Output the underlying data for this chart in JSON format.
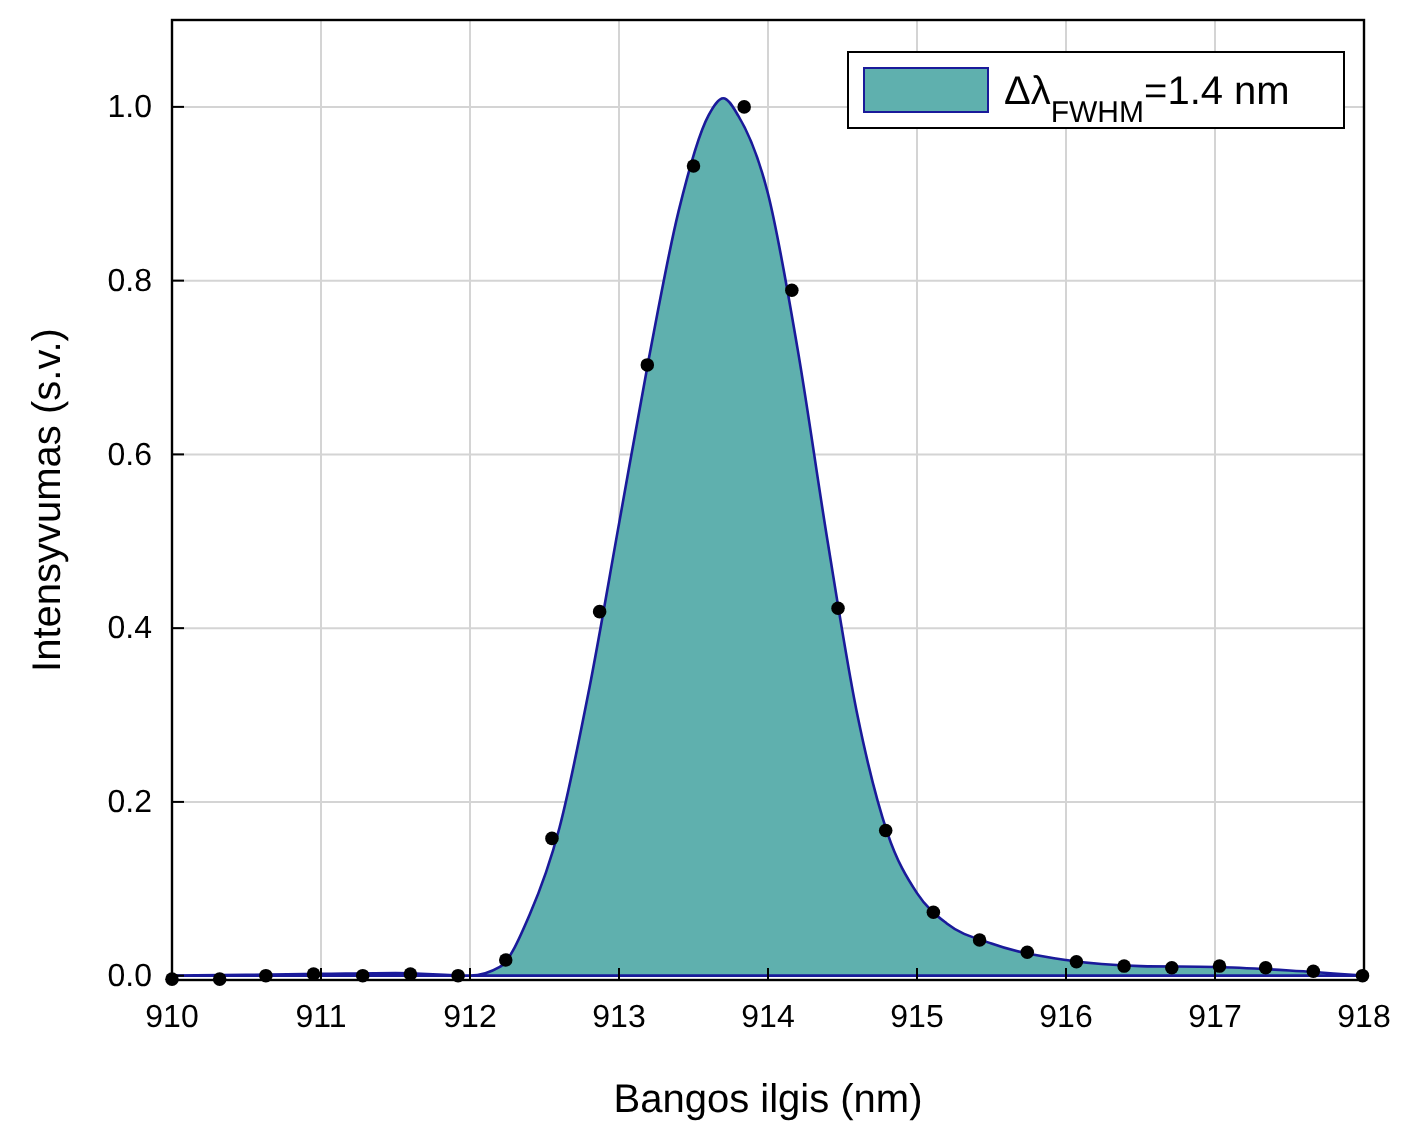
{
  "chart_data": {
    "type": "scatter",
    "xlabel": "Bangos ilgis (nm)",
    "ylabel": "Intensyvumas (s.v.)",
    "xlim": [
      910,
      918
    ],
    "xticks": [
      910,
      911,
      912,
      913,
      914,
      915,
      916,
      917,
      918
    ],
    "ylim": [
      -0.005,
      1.1
    ],
    "yticks": [
      {
        "value": 0,
        "label": "0.0"
      },
      {
        "value": 0.2,
        "label": "0.2"
      },
      {
        "value": 0.4,
        "label": "0.4"
      },
      {
        "value": 0.6,
        "label": "0.6"
      },
      {
        "value": 0.8,
        "label": "0.8"
      },
      {
        "value": 1.0,
        "label": "1.0"
      }
    ],
    "grid": true,
    "legend": "top right",
    "series": [
      {
        "type": "area",
        "name": "Δλ$_{FWHM}$=1.4 nm",
        "color": "#5fb0ae",
        "x": [
          910,
          911,
          911.5,
          912,
          912.2,
          912.4,
          912.6,
          912.8,
          913.0,
          913.2,
          913.4,
          913.6,
          913.7,
          913.8,
          914.0,
          914.2,
          914.4,
          914.6,
          914.8,
          915.0,
          915.2,
          915.5,
          916,
          916.5,
          917,
          917.5,
          918
        ],
        "values": [
          0,
          0.002,
          0.003,
          0,
          0.01,
          0.07,
          0.17,
          0.33,
          0.52,
          0.71,
          0.88,
          0.99,
          1.01,
          0.99,
          0.9,
          0.72,
          0.5,
          0.3,
          0.165,
          0.095,
          0.06,
          0.037,
          0.018,
          0.011,
          0.01,
          0.006,
          0
        ]
      },
      {
        "marker": "circle",
        "color": "#000000",
        "x": [
          910.0,
          910.32,
          910.63,
          910.95,
          911.28,
          911.6,
          911.92,
          912.24,
          912.55,
          912.87,
          913.19,
          913.5,
          913.84,
          914.16,
          914.47,
          914.79,
          915.11,
          915.42,
          915.74,
          916.07,
          916.39,
          916.71,
          917.03,
          917.34,
          917.66,
          917.99
        ],
        "values": [
          -0.004,
          -0.004,
          0,
          0.002,
          0,
          0.002,
          0,
          0.018,
          0.158,
          0.419,
          0.703,
          0.932,
          1.0,
          0.789,
          0.423,
          0.167,
          0.073,
          0.041,
          0.027,
          0.016,
          0.011,
          0.009,
          0.011,
          0.009,
          0.005,
          0
        ]
      }
    ]
  }
}
